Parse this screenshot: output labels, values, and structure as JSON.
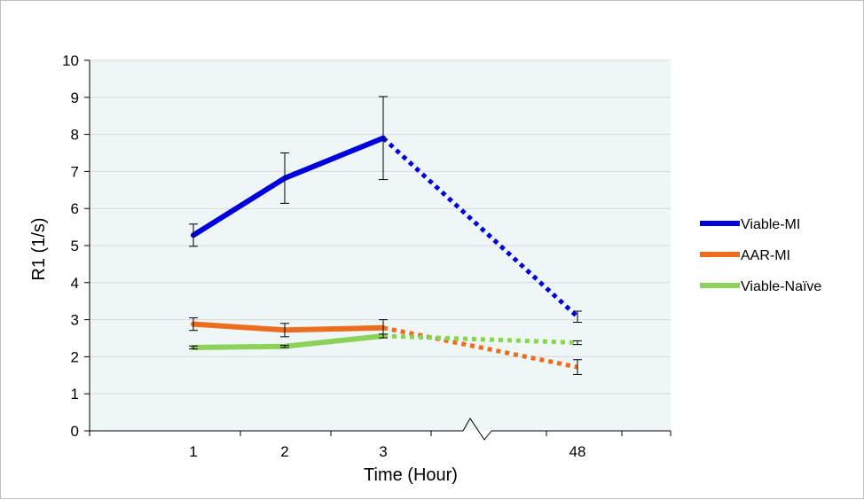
{
  "chart_data": {
    "type": "line",
    "xlabel": "Time (Hour)",
    "ylabel": "R1 (1/s)",
    "ylim": [
      0,
      10
    ],
    "y_ticks": [
      0,
      1,
      2,
      3,
      4,
      5,
      6,
      7,
      8,
      9,
      10
    ],
    "categories": [
      "1",
      "2",
      "3",
      "48"
    ],
    "axis_break": "between 3 and 48",
    "grid": "horizontal major gridlines",
    "plot_background": "#eef6f6",
    "legend_position": "right",
    "series": [
      {
        "name": "Viable-MI",
        "color": "#0000dc",
        "values": [
          5.28,
          6.82,
          7.9,
          3.08
        ],
        "error": [
          0.3,
          0.68,
          1.12,
          0.15
        ],
        "segment_to_last": "dotted"
      },
      {
        "name": "AAR-MI",
        "color": "#ed6d1f",
        "values": [
          2.88,
          2.72,
          2.78,
          1.72
        ],
        "error": [
          0.17,
          0.18,
          0.22,
          0.2
        ],
        "segment_to_last": "dotted"
      },
      {
        "name": "Viable-Naïve",
        "color": "#8cd15a",
        "values": [
          2.25,
          2.28,
          2.56,
          2.38
        ],
        "error": [
          0.04,
          0.03,
          0.05,
          0.05
        ],
        "segment_to_last": "dotted"
      }
    ]
  }
}
